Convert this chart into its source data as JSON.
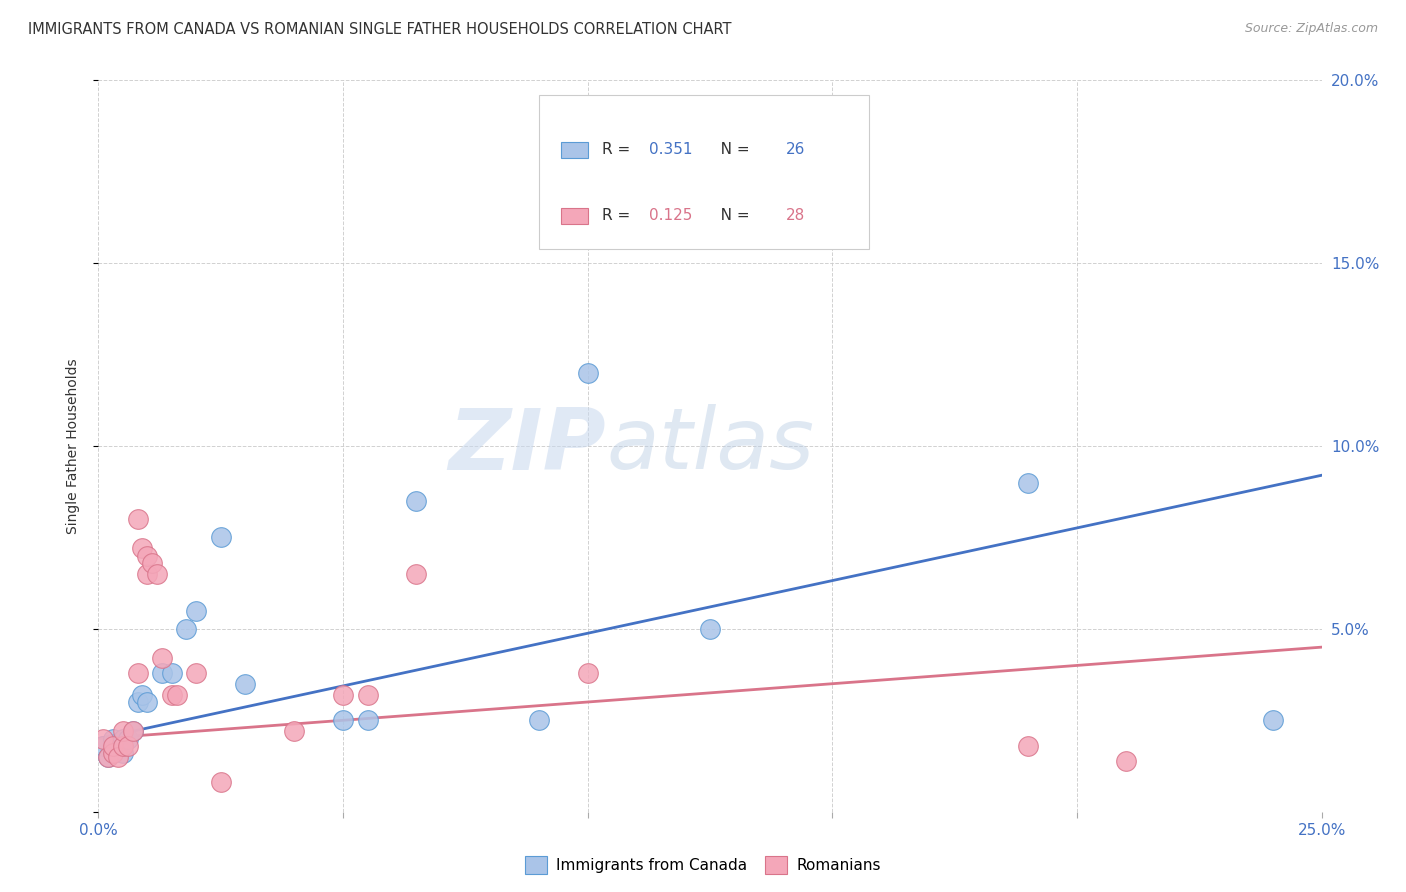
{
  "title": "IMMIGRANTS FROM CANADA VS ROMANIAN SINGLE FATHER HOUSEHOLDS CORRELATION CHART",
  "source": "Source: ZipAtlas.com",
  "ylabel": "Single Father Households",
  "xlim": [
    0.0,
    0.25
  ],
  "ylim": [
    0.0,
    0.2
  ],
  "xtick_positions": [
    0.0,
    0.05,
    0.1,
    0.15,
    0.2,
    0.25
  ],
  "ytick_positions": [
    0.0,
    0.05,
    0.1,
    0.15,
    0.2
  ],
  "legend_label1": "Immigrants from Canada",
  "legend_label2": "Romanians",
  "canada_color": "#aac4e8",
  "canada_edge_color": "#5b9bd5",
  "romania_color": "#f4a7b9",
  "romania_edge_color": "#d9748a",
  "canada_line_color": "#4472c4",
  "romania_line_color": "#d9748a",
  "watermark_zip": "ZIP",
  "watermark_atlas": "atlas",
  "canada_r": "0.351",
  "canada_n": "26",
  "romania_r": "0.125",
  "romania_n": "28",
  "canada_points": [
    [
      0.001,
      0.018
    ],
    [
      0.002,
      0.015
    ],
    [
      0.003,
      0.016
    ],
    [
      0.003,
      0.02
    ],
    [
      0.004,
      0.018
    ],
    [
      0.005,
      0.016
    ],
    [
      0.005,
      0.02
    ],
    [
      0.006,
      0.02
    ],
    [
      0.007,
      0.022
    ],
    [
      0.008,
      0.03
    ],
    [
      0.009,
      0.032
    ],
    [
      0.01,
      0.03
    ],
    [
      0.013,
      0.038
    ],
    [
      0.015,
      0.038
    ],
    [
      0.018,
      0.05
    ],
    [
      0.02,
      0.055
    ],
    [
      0.025,
      0.075
    ],
    [
      0.03,
      0.035
    ],
    [
      0.05,
      0.025
    ],
    [
      0.055,
      0.025
    ],
    [
      0.065,
      0.085
    ],
    [
      0.09,
      0.025
    ],
    [
      0.1,
      0.12
    ],
    [
      0.125,
      0.05
    ],
    [
      0.19,
      0.09
    ],
    [
      0.24,
      0.025
    ]
  ],
  "romania_points": [
    [
      0.001,
      0.02
    ],
    [
      0.002,
      0.015
    ],
    [
      0.003,
      0.016
    ],
    [
      0.003,
      0.018
    ],
    [
      0.004,
      0.015
    ],
    [
      0.005,
      0.018
    ],
    [
      0.005,
      0.022
    ],
    [
      0.006,
      0.018
    ],
    [
      0.007,
      0.022
    ],
    [
      0.008,
      0.038
    ],
    [
      0.009,
      0.072
    ],
    [
      0.01,
      0.065
    ],
    [
      0.01,
      0.07
    ],
    [
      0.011,
      0.068
    ],
    [
      0.012,
      0.065
    ],
    [
      0.013,
      0.042
    ],
    [
      0.015,
      0.032
    ],
    [
      0.016,
      0.032
    ],
    [
      0.02,
      0.038
    ],
    [
      0.025,
      0.008
    ],
    [
      0.04,
      0.022
    ],
    [
      0.05,
      0.032
    ],
    [
      0.055,
      0.032
    ],
    [
      0.065,
      0.065
    ],
    [
      0.1,
      0.038
    ],
    [
      0.19,
      0.018
    ],
    [
      0.21,
      0.014
    ],
    [
      0.008,
      0.08
    ]
  ],
  "canada_trend": [
    0.0,
    0.02,
    0.25,
    0.092
  ],
  "romania_trend": [
    0.0,
    0.02,
    0.25,
    0.045
  ]
}
